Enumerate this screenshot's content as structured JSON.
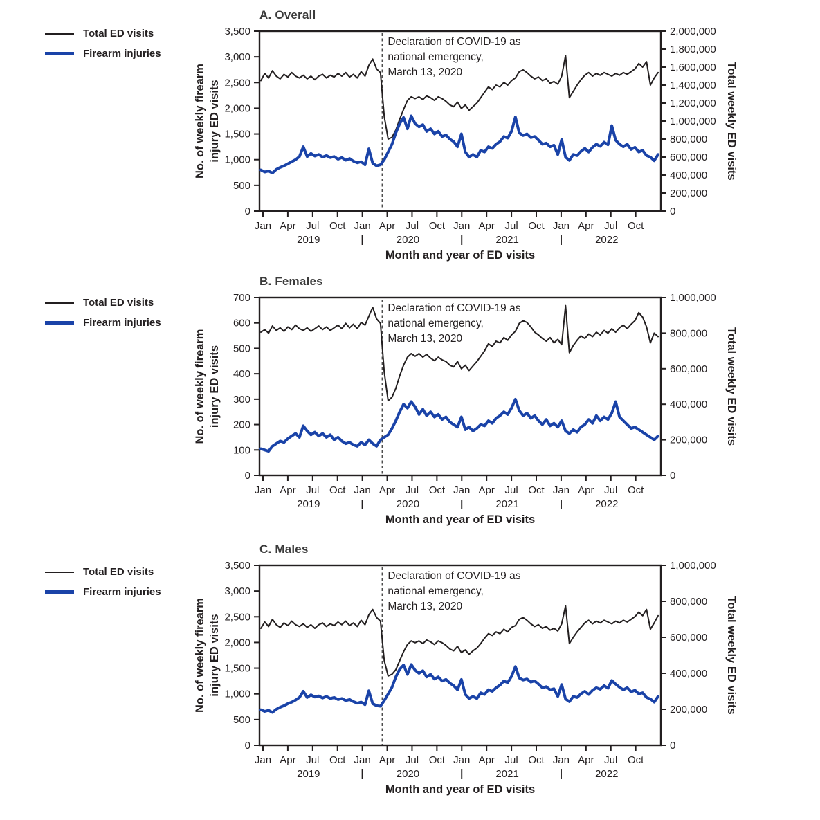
{
  "figure": {
    "legend": [
      {
        "label": "Total ED visits",
        "series_key": "total",
        "color": "#231f20"
      },
      {
        "label": "Firearm injuries",
        "series_key": "firearm",
        "color": "#1a43a8"
      }
    ],
    "x_axis_title": "Month and year of ED visits",
    "x_quarter_labels": [
      "Jan",
      "Apr",
      "Jul",
      "Oct"
    ],
    "years": [
      "2019",
      "2020",
      "2021",
      "2022"
    ],
    "year_separator": "|",
    "annotation_lines": [
      "Declaration of COVID-19 as",
      "national emergency,",
      "March 13, 2020"
    ],
    "annotation_event_date": "March 13, 2020",
    "colors": {
      "total_line": "#231f20",
      "firearm_line": "#1a43a8",
      "dashed_line": "#4d4d4d"
    }
  },
  "chart_data": [
    {
      "type": "line",
      "title": "A. Overall",
      "x": {
        "start": "Jan 2019",
        "end": "Dec 2022",
        "points": 104,
        "unit": "week of ED visit"
      },
      "left_axis": {
        "label": "No. of weekly firearm injury ED visits",
        "label_lines": [
          "No. of weekly firearm",
          "injury ED visits"
        ],
        "min": 0,
        "max": 3500,
        "step": 500
      },
      "right_axis": {
        "label": "Total weekly ED visits",
        "min": 0,
        "max": 2000000,
        "step": 200000
      },
      "vline_month_index": 14.4,
      "series": [
        {
          "name": "Total ED visits",
          "axis": "right",
          "color": "#231f20",
          "width": 2,
          "values": [
            1450000,
            1530000,
            1480000,
            1560000,
            1500000,
            1470000,
            1520000,
            1490000,
            1540000,
            1500000,
            1480000,
            1510000,
            1470000,
            1500000,
            1460000,
            1500000,
            1520000,
            1480000,
            1510000,
            1490000,
            1530000,
            1500000,
            1540000,
            1490000,
            1520000,
            1480000,
            1550000,
            1500000,
            1620000,
            1690000,
            1580000,
            1540000,
            1050000,
            800000,
            820000,
            900000,
            1020000,
            1130000,
            1230000,
            1270000,
            1250000,
            1270000,
            1240000,
            1280000,
            1260000,
            1230000,
            1270000,
            1250000,
            1220000,
            1180000,
            1160000,
            1210000,
            1140000,
            1180000,
            1120000,
            1160000,
            1200000,
            1260000,
            1320000,
            1380000,
            1350000,
            1400000,
            1380000,
            1430000,
            1400000,
            1450000,
            1480000,
            1550000,
            1570000,
            1540000,
            1500000,
            1470000,
            1490000,
            1450000,
            1470000,
            1420000,
            1440000,
            1410000,
            1500000,
            1730000,
            1260000,
            1330000,
            1400000,
            1460000,
            1510000,
            1540000,
            1500000,
            1530000,
            1510000,
            1540000,
            1520000,
            1500000,
            1530000,
            1510000,
            1540000,
            1520000,
            1550000,
            1580000,
            1640000,
            1600000,
            1660000,
            1400000,
            1480000,
            1540000
          ]
        },
        {
          "name": "Firearm injuries",
          "axis": "left",
          "color": "#1a43a8",
          "width": 4,
          "values": [
            800,
            760,
            780,
            740,
            810,
            850,
            880,
            920,
            960,
            1000,
            1060,
            1250,
            1060,
            1120,
            1070,
            1100,
            1050,
            1080,
            1040,
            1060,
            1010,
            1040,
            990,
            1020,
            970,
            940,
            960,
            900,
            1210,
            930,
            880,
            900,
            1000,
            1150,
            1300,
            1520,
            1700,
            1820,
            1600,
            1850,
            1700,
            1640,
            1680,
            1550,
            1600,
            1500,
            1550,
            1450,
            1480,
            1400,
            1350,
            1250,
            1500,
            1150,
            1050,
            1100,
            1050,
            1180,
            1150,
            1250,
            1220,
            1300,
            1350,
            1450,
            1420,
            1550,
            1830,
            1520,
            1470,
            1500,
            1430,
            1450,
            1380,
            1300,
            1320,
            1250,
            1280,
            1100,
            1390,
            1050,
            985,
            1100,
            1080,
            1160,
            1220,
            1150,
            1240,
            1300,
            1260,
            1340,
            1290,
            1660,
            1380,
            1300,
            1250,
            1300,
            1200,
            1240,
            1150,
            1180,
            1080,
            1050,
            980,
            1100
          ]
        }
      ]
    },
    {
      "type": "line",
      "title": "B. Females",
      "x": {
        "start": "Jan 2019",
        "end": "Dec 2022",
        "points": 104,
        "unit": "week of ED visit"
      },
      "left_axis": {
        "label": "No. of weekly firearm injury ED visits",
        "label_lines": [
          "No. of weekly firearm",
          "injury ED visits"
        ],
        "min": 0,
        "max": 700,
        "step": 100
      },
      "right_axis": {
        "label": "Total weekly ED visits",
        "min": 0,
        "max": 1000000,
        "step": 200000
      },
      "vline_month_index": 14.4,
      "series": [
        {
          "name": "Total ED visits",
          "axis": "right",
          "color": "#231f20",
          "width": 2,
          "values": [
            805000,
            820000,
            800000,
            840000,
            815000,
            830000,
            810000,
            835000,
            820000,
            845000,
            825000,
            815000,
            830000,
            810000,
            825000,
            840000,
            820000,
            835000,
            815000,
            830000,
            845000,
            825000,
            855000,
            830000,
            850000,
            825000,
            860000,
            845000,
            895000,
            945000,
            880000,
            855000,
            580000,
            420000,
            440000,
            490000,
            560000,
            620000,
            665000,
            685000,
            670000,
            685000,
            665000,
            680000,
            660000,
            645000,
            665000,
            650000,
            640000,
            620000,
            610000,
            640000,
            600000,
            620000,
            590000,
            615000,
            640000,
            670000,
            700000,
            740000,
            725000,
            755000,
            745000,
            775000,
            760000,
            790000,
            810000,
            855000,
            870000,
            860000,
            835000,
            805000,
            790000,
            770000,
            755000,
            775000,
            745000,
            765000,
            735000,
            955000,
            690000,
            730000,
            760000,
            785000,
            770000,
            795000,
            780000,
            805000,
            790000,
            815000,
            800000,
            825000,
            805000,
            830000,
            845000,
            825000,
            850000,
            870000,
            915000,
            890000,
            835000,
            745000,
            800000,
            780000
          ]
        },
        {
          "name": "Firearm injuries",
          "axis": "left",
          "color": "#1a43a8",
          "width": 4,
          "values": [
            105,
            100,
            95,
            115,
            125,
            135,
            130,
            145,
            155,
            165,
            150,
            195,
            175,
            160,
            170,
            155,
            165,
            150,
            160,
            140,
            150,
            135,
            125,
            130,
            120,
            115,
            130,
            120,
            140,
            125,
            115,
            140,
            150,
            160,
            185,
            215,
            250,
            280,
            265,
            290,
            270,
            240,
            260,
            235,
            250,
            230,
            240,
            220,
            230,
            210,
            200,
            190,
            230,
            180,
            190,
            175,
            185,
            200,
            195,
            215,
            205,
            225,
            235,
            250,
            240,
            265,
            300,
            255,
            235,
            245,
            225,
            235,
            215,
            200,
            220,
            195,
            205,
            190,
            215,
            175,
            165,
            180,
            170,
            190,
            200,
            220,
            205,
            235,
            215,
            230,
            220,
            245,
            290,
            230,
            215,
            200,
            185,
            190,
            180,
            170,
            160,
            150,
            140,
            155
          ]
        }
      ]
    },
    {
      "type": "line",
      "title": "C. Males",
      "x": {
        "start": "Jan 2019",
        "end": "Dec 2022",
        "points": 104,
        "unit": "week of ED visit"
      },
      "left_axis": {
        "label": "No. of weekly firearm injury ED visits",
        "label_lines": [
          "No. of weekly firearm",
          "injury ED visits"
        ],
        "min": 0,
        "max": 3500,
        "step": 500
      },
      "right_axis": {
        "label": "Total weekly ED visits",
        "min": 0,
        "max": 1000000,
        "step": 200000
      },
      "vline_month_index": 14.4,
      "series": [
        {
          "name": "Total ED visits",
          "axis": "right",
          "color": "#231f20",
          "width": 2,
          "values": [
            650000,
            685000,
            660000,
            700000,
            670000,
            655000,
            680000,
            665000,
            690000,
            670000,
            660000,
            675000,
            655000,
            670000,
            650000,
            670000,
            680000,
            660000,
            675000,
            665000,
            685000,
            670000,
            690000,
            665000,
            680000,
            660000,
            695000,
            670000,
            725000,
            755000,
            710000,
            690000,
            470000,
            385000,
            395000,
            420000,
            470000,
            520000,
            560000,
            580000,
            570000,
            580000,
            565000,
            585000,
            575000,
            560000,
            580000,
            570000,
            555000,
            535000,
            525000,
            550000,
            515000,
            530000,
            505000,
            525000,
            540000,
            565000,
            595000,
            620000,
            610000,
            630000,
            620000,
            645000,
            630000,
            655000,
            665000,
            700000,
            710000,
            695000,
            675000,
            660000,
            670000,
            650000,
            660000,
            640000,
            650000,
            635000,
            675000,
            775000,
            565000,
            600000,
            630000,
            655000,
            680000,
            695000,
            675000,
            690000,
            680000,
            695000,
            685000,
            675000,
            690000,
            680000,
            695000,
            685000,
            700000,
            715000,
            740000,
            720000,
            755000,
            645000,
            680000,
            720000
          ]
        },
        {
          "name": "Firearm injuries",
          "axis": "left",
          "color": "#1a43a8",
          "width": 4,
          "values": [
            690,
            660,
            680,
            640,
            700,
            740,
            770,
            810,
            840,
            880,
            930,
            1050,
            930,
            980,
            940,
            960,
            920,
            950,
            910,
            930,
            890,
            910,
            870,
            890,
            850,
            820,
            840,
            790,
            1060,
            810,
            770,
            760,
            870,
            1000,
            1130,
            1330,
            1480,
            1560,
            1380,
            1570,
            1460,
            1400,
            1450,
            1330,
            1380,
            1290,
            1330,
            1250,
            1280,
            1210,
            1160,
            1080,
            1280,
            990,
            910,
            950,
            910,
            1020,
            990,
            1080,
            1050,
            1120,
            1170,
            1250,
            1220,
            1340,
            1530,
            1310,
            1270,
            1290,
            1230,
            1250,
            1190,
            1120,
            1140,
            1080,
            1100,
            950,
            1180,
            900,
            850,
            950,
            930,
            1000,
            1050,
            990,
            1070,
            1120,
            1090,
            1160,
            1110,
            1260,
            1190,
            1130,
            1080,
            1120,
            1040,
            1070,
            1000,
            1020,
            930,
            900,
            840,
            950
          ]
        }
      ]
    }
  ]
}
